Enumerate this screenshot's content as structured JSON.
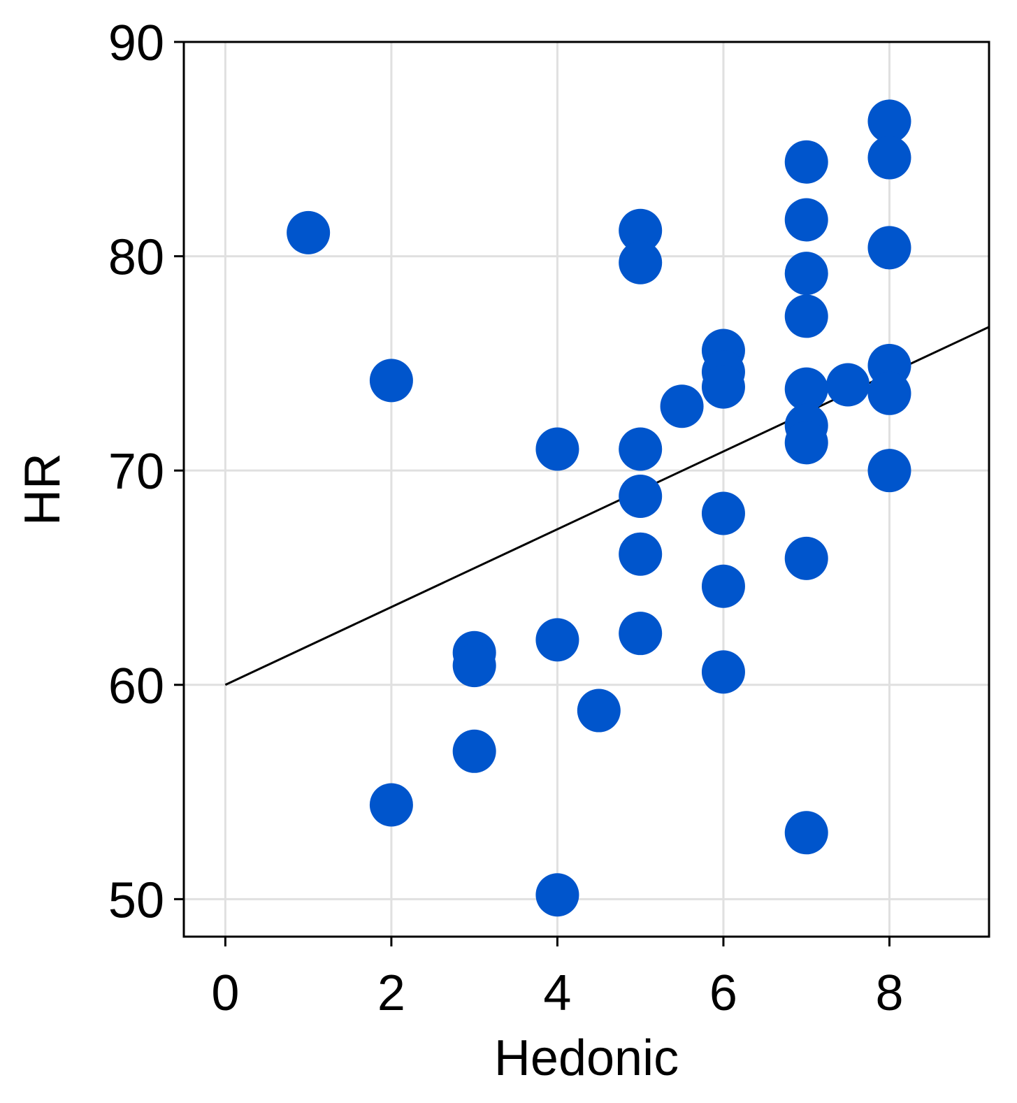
{
  "chart_data": {
    "type": "scatter",
    "title": "",
    "xlabel": "Hedonic",
    "ylabel": "HR",
    "xlim": [
      -0.5,
      9.2
    ],
    "ylim": [
      48.25,
      90
    ],
    "x_ticks": [
      0,
      2,
      4,
      6,
      8
    ],
    "y_ticks": [
      50,
      60,
      70,
      80,
      90
    ],
    "x_tick_labels": [
      "0",
      "2",
      "4",
      "6",
      "8"
    ],
    "y_tick_labels": [
      "50",
      "60",
      "70",
      "80",
      "90"
    ],
    "grid": true,
    "legend": "none",
    "colors": {
      "points": "#0055cc",
      "line": "#000000",
      "grid": "#e0e0e0",
      "axes": "#000000"
    },
    "series": [
      {
        "points": [
          {
            "x": 1,
            "y": 81.1
          },
          {
            "x": 2,
            "y": 74.2
          },
          {
            "x": 2,
            "y": 54.4
          },
          {
            "x": 3,
            "y": 61.5
          },
          {
            "x": 3,
            "y": 60.9
          },
          {
            "x": 3,
            "y": 56.9
          },
          {
            "x": 4,
            "y": 71.0
          },
          {
            "x": 4,
            "y": 62.1
          },
          {
            "x": 4,
            "y": 50.2
          },
          {
            "x": 4.5,
            "y": 58.8
          },
          {
            "x": 5,
            "y": 81.2
          },
          {
            "x": 5,
            "y": 79.7
          },
          {
            "x": 5,
            "y": 71.0
          },
          {
            "x": 5,
            "y": 68.8
          },
          {
            "x": 5,
            "y": 66.1
          },
          {
            "x": 5,
            "y": 62.4
          },
          {
            "x": 5.5,
            "y": 73.0
          },
          {
            "x": 6,
            "y": 75.6
          },
          {
            "x": 6,
            "y": 74.6
          },
          {
            "x": 6,
            "y": 73.9
          },
          {
            "x": 6,
            "y": 68.0
          },
          {
            "x": 6,
            "y": 64.6
          },
          {
            "x": 6,
            "y": 60.6
          },
          {
            "x": 7,
            "y": 84.4
          },
          {
            "x": 7,
            "y": 81.7
          },
          {
            "x": 7,
            "y": 79.2
          },
          {
            "x": 7,
            "y": 77.2
          },
          {
            "x": 7,
            "y": 73.8
          },
          {
            "x": 7,
            "y": 72.1
          },
          {
            "x": 7,
            "y": 71.3
          },
          {
            "x": 7,
            "y": 65.9
          },
          {
            "x": 7,
            "y": 53.1
          },
          {
            "x": 7.5,
            "y": 74.0
          },
          {
            "x": 8,
            "y": 86.3
          },
          {
            "x": 8,
            "y": 84.6
          },
          {
            "x": 8,
            "y": 80.4
          },
          {
            "x": 8,
            "y": 74.9
          },
          {
            "x": 8,
            "y": 73.6
          },
          {
            "x": 8,
            "y": 70.0
          }
        ]
      }
    ],
    "trend_line": {
      "x": [
        0,
        9.2
      ],
      "y": [
        60.0,
        76.7
      ]
    }
  }
}
